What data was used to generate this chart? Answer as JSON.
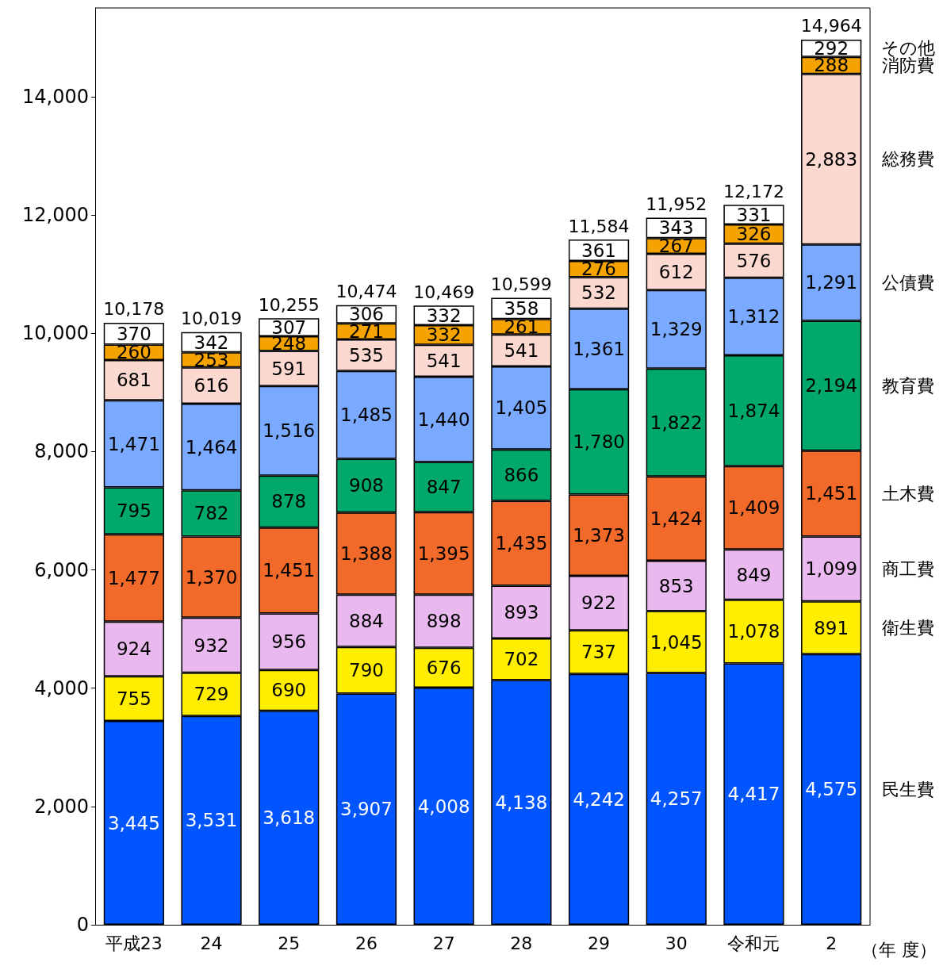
{
  "chart_data": {
    "type": "bar",
    "stacked": true,
    "grid": false,
    "legend": "right",
    "xlabel": "（年 度）",
    "categories": [
      "平成23",
      "24",
      "25",
      "26",
      "27",
      "28",
      "29",
      "30",
      "令和元",
      "2"
    ],
    "ylim": [
      0,
      15500
    ],
    "yticks": [
      {
        "value": 0,
        "label": "0"
      },
      {
        "value": 2000,
        "label": "2,000"
      },
      {
        "value": 4000,
        "label": "4,000"
      },
      {
        "value": 6000,
        "label": "6,000"
      },
      {
        "value": 8000,
        "label": "8,000"
      },
      {
        "value": 10000,
        "label": "10,000"
      },
      {
        "value": 12000,
        "label": "12,000"
      },
      {
        "value": 14000,
        "label": "14,000"
      }
    ],
    "totals": [
      "10,178",
      "10,019",
      "10,255",
      "10,474",
      "10,469",
      "10,599",
      "11,584",
      "11,952",
      "12,172",
      "14,964"
    ],
    "series": [
      {
        "name": "民生費",
        "color": "#0055ff",
        "values": [
          3445,
          3531,
          3618,
          3907,
          4008,
          4138,
          4242,
          4257,
          4417,
          4575
        ],
        "value_labels": [
          "3,445",
          "3,531",
          "3,618",
          "3,907",
          "4,008",
          "4,138",
          "4,242",
          "4,257",
          "4,417",
          "4,575"
        ]
      },
      {
        "name": "衛生費",
        "color": "#ffee00",
        "values": [
          755,
          729,
          690,
          790,
          676,
          702,
          737,
          1045,
          1078,
          891
        ],
        "value_labels": [
          "755",
          "729",
          "690",
          "790",
          "676",
          "702",
          "737",
          "1,045",
          "1,078",
          "891"
        ]
      },
      {
        "name": "商工費",
        "color": "#e8b8ee",
        "values": [
          924,
          932,
          956,
          884,
          898,
          893,
          922,
          853,
          849,
          1099
        ],
        "value_labels": [
          "924",
          "932",
          "956",
          "884",
          "898",
          "893",
          "922",
          "853",
          "849",
          "1,099"
        ]
      },
      {
        "name": "土木費",
        "color": "#f26a2a",
        "values": [
          1477,
          1370,
          1451,
          1388,
          1395,
          1435,
          1373,
          1424,
          1409,
          1451
        ],
        "value_labels": [
          "1,477",
          "1,370",
          "1,451",
          "1,388",
          "1,395",
          "1,435",
          "1,373",
          "1,424",
          "1,409",
          "1,451"
        ]
      },
      {
        "name": "教育費",
        "color": "#00a86b",
        "values": [
          795,
          782,
          878,
          908,
          847,
          866,
          1780,
          1822,
          1874,
          2194
        ],
        "value_labels": [
          "795",
          "782",
          "878",
          "908",
          "847",
          "866",
          "1,780",
          "1,822",
          "1,874",
          "2,194"
        ]
      },
      {
        "name": "公債費",
        "color": "#7aaaff",
        "values": [
          1471,
          1464,
          1516,
          1485,
          1440,
          1405,
          1361,
          1329,
          1312,
          1291
        ],
        "value_labels": [
          "1,471",
          "1,464",
          "1,516",
          "1,485",
          "1,440",
          "1,405",
          "1,361",
          "1,329",
          "1,312",
          "1,291"
        ]
      },
      {
        "name": "総務費",
        "color": "#fbd8d0",
        "values": [
          681,
          616,
          591,
          535,
          541,
          541,
          532,
          612,
          576,
          2883
        ],
        "value_labels": [
          "681",
          "616",
          "591",
          "535",
          "541",
          "541",
          "532",
          "612",
          "576",
          "2,883"
        ]
      },
      {
        "name": "消防費",
        "color": "#f5a300",
        "values": [
          260,
          253,
          248,
          271,
          332,
          261,
          276,
          267,
          326,
          288
        ],
        "value_labels": [
          "260",
          "253",
          "248",
          "271",
          "332",
          "261",
          "276",
          "267",
          "326",
          "288"
        ]
      },
      {
        "name": "その他",
        "color": "#ffffff",
        "values": [
          370,
          342,
          307,
          306,
          332,
          358,
          361,
          343,
          331,
          292
        ],
        "value_labels": [
          "370",
          "342",
          "307",
          "306",
          "332",
          "358",
          "361",
          "343",
          "331",
          "292"
        ]
      }
    ]
  }
}
